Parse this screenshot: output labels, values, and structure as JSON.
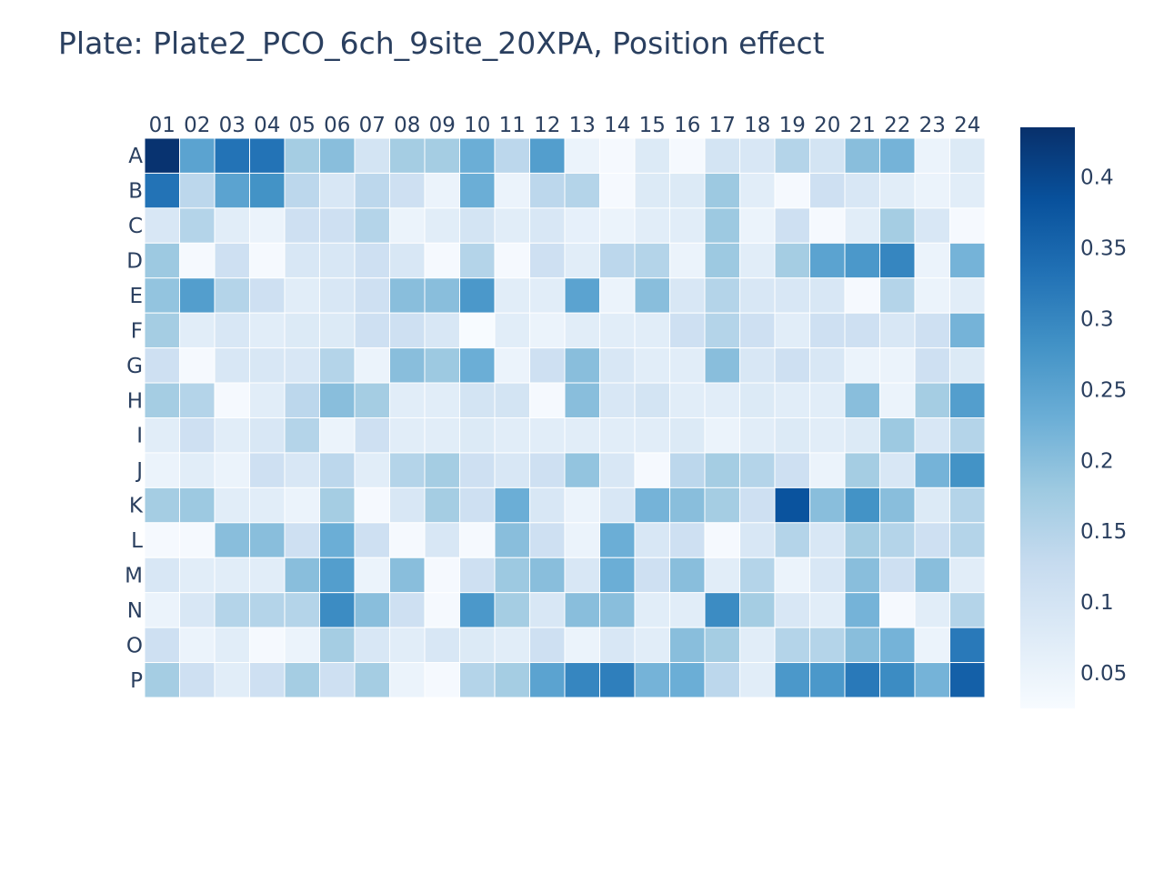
{
  "chart_data": {
    "type": "heatmap",
    "title": "Plate: Plate2_PCO_6ch_9site_20XPA, Position effect",
    "x_categories": [
      "01",
      "02",
      "03",
      "04",
      "05",
      "06",
      "07",
      "08",
      "09",
      "10",
      "11",
      "12",
      "13",
      "14",
      "15",
      "16",
      "17",
      "18",
      "19",
      "20",
      "21",
      "22",
      "23",
      "24"
    ],
    "y_categories": [
      "A",
      "B",
      "C",
      "D",
      "E",
      "F",
      "G",
      "H",
      "I",
      "J",
      "K",
      "L",
      "M",
      "N",
      "O",
      "P"
    ],
    "values": [
      [
        0.43,
        0.25,
        0.33,
        0.33,
        0.17,
        0.2,
        0.1,
        0.17,
        0.17,
        0.23,
        0.14,
        0.26,
        0.05,
        0.03,
        0.08,
        0.03,
        0.1,
        0.09,
        0.15,
        0.1,
        0.2,
        0.22,
        0.05,
        0.08
      ],
      [
        0.33,
        0.14,
        0.25,
        0.28,
        0.14,
        0.09,
        0.14,
        0.11,
        0.05,
        0.23,
        0.05,
        0.14,
        0.15,
        0.03,
        0.08,
        0.08,
        0.18,
        0.07,
        0.03,
        0.11,
        0.09,
        0.07,
        0.05,
        0.07
      ],
      [
        0.09,
        0.15,
        0.07,
        0.05,
        0.11,
        0.11,
        0.15,
        0.05,
        0.07,
        0.1,
        0.07,
        0.09,
        0.06,
        0.05,
        0.07,
        0.07,
        0.18,
        0.05,
        0.11,
        0.03,
        0.07,
        0.17,
        0.09,
        0.03
      ],
      [
        0.18,
        0.03,
        0.11,
        0.03,
        0.09,
        0.09,
        0.11,
        0.09,
        0.03,
        0.15,
        0.03,
        0.11,
        0.07,
        0.14,
        0.15,
        0.05,
        0.18,
        0.07,
        0.17,
        0.25,
        0.27,
        0.3,
        0.05,
        0.22
      ],
      [
        0.19,
        0.26,
        0.15,
        0.11,
        0.07,
        0.09,
        0.11,
        0.2,
        0.2,
        0.27,
        0.07,
        0.07,
        0.25,
        0.05,
        0.2,
        0.09,
        0.15,
        0.09,
        0.09,
        0.09,
        0.03,
        0.15,
        0.05,
        0.07
      ],
      [
        0.17,
        0.07,
        0.09,
        0.07,
        0.08,
        0.08,
        0.11,
        0.11,
        0.09,
        0.02,
        0.07,
        0.05,
        0.07,
        0.07,
        0.07,
        0.11,
        0.15,
        0.11,
        0.07,
        0.11,
        0.11,
        0.09,
        0.11,
        0.22
      ],
      [
        0.11,
        0.03,
        0.09,
        0.09,
        0.09,
        0.15,
        0.05,
        0.2,
        0.18,
        0.23,
        0.05,
        0.11,
        0.2,
        0.09,
        0.07,
        0.07,
        0.2,
        0.09,
        0.11,
        0.09,
        0.05,
        0.05,
        0.11,
        0.08
      ],
      [
        0.17,
        0.15,
        0.03,
        0.07,
        0.14,
        0.2,
        0.17,
        0.07,
        0.07,
        0.1,
        0.1,
        0.03,
        0.2,
        0.09,
        0.1,
        0.07,
        0.07,
        0.08,
        0.07,
        0.07,
        0.2,
        0.05,
        0.17,
        0.26
      ],
      [
        0.07,
        0.11,
        0.07,
        0.09,
        0.15,
        0.05,
        0.11,
        0.07,
        0.07,
        0.08,
        0.07,
        0.07,
        0.07,
        0.07,
        0.07,
        0.08,
        0.05,
        0.07,
        0.08,
        0.07,
        0.08,
        0.18,
        0.09,
        0.15
      ],
      [
        0.05,
        0.07,
        0.05,
        0.11,
        0.09,
        0.14,
        0.07,
        0.15,
        0.17,
        0.11,
        0.09,
        0.11,
        0.19,
        0.09,
        0.03,
        0.14,
        0.17,
        0.15,
        0.11,
        0.05,
        0.17,
        0.09,
        0.22,
        0.28
      ],
      [
        0.17,
        0.18,
        0.07,
        0.07,
        0.05,
        0.17,
        0.03,
        0.09,
        0.17,
        0.11,
        0.23,
        0.09,
        0.05,
        0.09,
        0.22,
        0.2,
        0.17,
        0.11,
        0.38,
        0.2,
        0.28,
        0.2,
        0.08,
        0.15
      ],
      [
        0.03,
        0.03,
        0.2,
        0.2,
        0.11,
        0.23,
        0.11,
        0.03,
        0.09,
        0.03,
        0.2,
        0.11,
        0.05,
        0.23,
        0.09,
        0.11,
        0.03,
        0.09,
        0.15,
        0.09,
        0.17,
        0.15,
        0.11,
        0.15
      ],
      [
        0.09,
        0.07,
        0.07,
        0.07,
        0.2,
        0.26,
        0.05,
        0.2,
        0.03,
        0.11,
        0.18,
        0.2,
        0.09,
        0.23,
        0.11,
        0.2,
        0.07,
        0.15,
        0.05,
        0.09,
        0.2,
        0.11,
        0.2,
        0.07
      ],
      [
        0.05,
        0.09,
        0.15,
        0.15,
        0.15,
        0.29,
        0.2,
        0.11,
        0.03,
        0.27,
        0.17,
        0.09,
        0.2,
        0.2,
        0.07,
        0.07,
        0.29,
        0.17,
        0.09,
        0.07,
        0.22,
        0.03,
        0.07,
        0.15
      ],
      [
        0.11,
        0.05,
        0.07,
        0.03,
        0.05,
        0.17,
        0.09,
        0.07,
        0.09,
        0.08,
        0.07,
        0.11,
        0.05,
        0.09,
        0.07,
        0.2,
        0.17,
        0.07,
        0.15,
        0.15,
        0.2,
        0.22,
        0.05,
        0.32
      ],
      [
        0.17,
        0.11,
        0.07,
        0.11,
        0.17,
        0.11,
        0.17,
        0.05,
        0.03,
        0.15,
        0.17,
        0.25,
        0.3,
        0.31,
        0.22,
        0.23,
        0.14,
        0.07,
        0.27,
        0.27,
        0.32,
        0.29,
        0.22,
        0.36
      ]
    ],
    "zlim": [
      0.025,
      0.435
    ],
    "colorscale": "Blues",
    "colorbar_ticks": [
      "0.05",
      "0.1",
      "0.15",
      "0.2",
      "0.25",
      "0.3",
      "0.35",
      "0.4"
    ],
    "colorbar_tick_values": [
      0.05,
      0.1,
      0.15,
      0.2,
      0.25,
      0.3,
      0.35,
      0.4
    ],
    "xlabel": "",
    "ylabel": "",
    "x_axis_side": "top",
    "grid": false
  }
}
